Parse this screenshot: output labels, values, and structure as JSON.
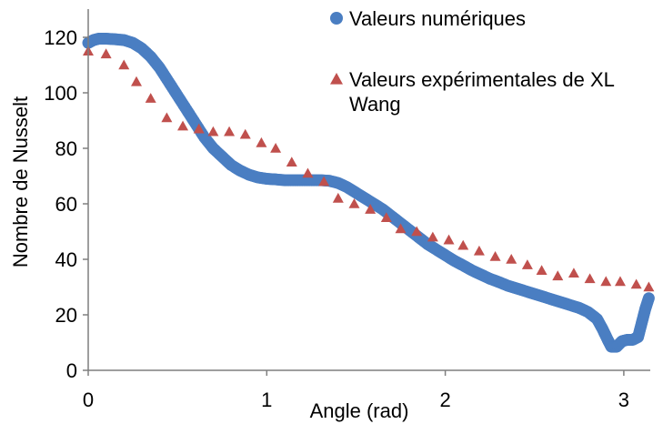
{
  "chart_data": {
    "type": "scatter",
    "xlabel": "Angle (rad)",
    "ylabel": "Nombre de Nusselt",
    "xlim": [
      0,
      3.2
    ],
    "ylim": [
      0,
      120
    ],
    "xticks": [
      0,
      1,
      2,
      3
    ],
    "yticks": [
      0,
      20,
      40,
      60,
      80,
      100,
      120
    ],
    "grid": false,
    "legend": "top-right",
    "series": [
      {
        "name": "Valeurs numériques",
        "marker": "circle",
        "color": "#4a7ec2",
        "points": [
          [
            0.0,
            118
          ],
          [
            0.03,
            119
          ],
          [
            0.06,
            119.5
          ],
          [
            0.1,
            119.5
          ],
          [
            0.15,
            119.3
          ],
          [
            0.2,
            119
          ],
          [
            0.25,
            118
          ],
          [
            0.3,
            116
          ],
          [
            0.35,
            113
          ],
          [
            0.4,
            109
          ],
          [
            0.45,
            104
          ],
          [
            0.5,
            99
          ],
          [
            0.55,
            94
          ],
          [
            0.6,
            89
          ],
          [
            0.65,
            84
          ],
          [
            0.7,
            80
          ],
          [
            0.75,
            77
          ],
          [
            0.8,
            74
          ],
          [
            0.85,
            72
          ],
          [
            0.9,
            70.5
          ],
          [
            0.95,
            69.5
          ],
          [
            1.0,
            69
          ],
          [
            1.05,
            68.8
          ],
          [
            1.1,
            68.5
          ],
          [
            1.15,
            68.5
          ],
          [
            1.2,
            68.5
          ],
          [
            1.25,
            68.5
          ],
          [
            1.3,
            68.5
          ],
          [
            1.35,
            68.3
          ],
          [
            1.4,
            67.5
          ],
          [
            1.45,
            66
          ],
          [
            1.5,
            64
          ],
          [
            1.55,
            62
          ],
          [
            1.6,
            60
          ],
          [
            1.65,
            58
          ],
          [
            1.7,
            55.5
          ],
          [
            1.75,
            53
          ],
          [
            1.8,
            50.5
          ],
          [
            1.85,
            48
          ],
          [
            1.9,
            45.5
          ],
          [
            1.95,
            43.5
          ],
          [
            2.0,
            41.5
          ],
          [
            2.05,
            39.5
          ],
          [
            2.1,
            37.8
          ],
          [
            2.15,
            36
          ],
          [
            2.2,
            34.5
          ],
          [
            2.25,
            33
          ],
          [
            2.3,
            31.8
          ],
          [
            2.35,
            30.5
          ],
          [
            2.4,
            29.5
          ],
          [
            2.45,
            28.5
          ],
          [
            2.5,
            27.5
          ],
          [
            2.55,
            26.5
          ],
          [
            2.6,
            25.5
          ],
          [
            2.65,
            24.5
          ],
          [
            2.7,
            23.5
          ],
          [
            2.75,
            22.5
          ],
          [
            2.8,
            21
          ],
          [
            2.85,
            18.5
          ],
          [
            2.88,
            15
          ],
          [
            2.91,
            11
          ],
          [
            2.93,
            8.5
          ],
          [
            2.96,
            8.5
          ],
          [
            2.99,
            10.5
          ],
          [
            3.02,
            11
          ],
          [
            3.05,
            11
          ],
          [
            3.08,
            12
          ],
          [
            3.1,
            17
          ],
          [
            3.12,
            22
          ],
          [
            3.14,
            26
          ]
        ]
      },
      {
        "name": "Valeurs expérimentales de XL Wang",
        "marker": "triangle",
        "color": "#c0504d",
        "points": [
          [
            0.0,
            115
          ],
          [
            0.1,
            114
          ],
          [
            0.2,
            110
          ],
          [
            0.27,
            104
          ],
          [
            0.35,
            98
          ],
          [
            0.44,
            91
          ],
          [
            0.53,
            88
          ],
          [
            0.62,
            87
          ],
          [
            0.7,
            86
          ],
          [
            0.79,
            86
          ],
          [
            0.88,
            85
          ],
          [
            0.97,
            82
          ],
          [
            1.05,
            80
          ],
          [
            1.14,
            75
          ],
          [
            1.23,
            71
          ],
          [
            1.32,
            68
          ],
          [
            1.4,
            62
          ],
          [
            1.49,
            60
          ],
          [
            1.58,
            58
          ],
          [
            1.67,
            55
          ],
          [
            1.75,
            51
          ],
          [
            1.84,
            50
          ],
          [
            1.93,
            48
          ],
          [
            2.02,
            47
          ],
          [
            2.1,
            45
          ],
          [
            2.19,
            43
          ],
          [
            2.28,
            41
          ],
          [
            2.37,
            40
          ],
          [
            2.46,
            38
          ],
          [
            2.54,
            36
          ],
          [
            2.63,
            34
          ],
          [
            2.72,
            35
          ],
          [
            2.81,
            33
          ],
          [
            2.9,
            32
          ],
          [
            2.98,
            32
          ],
          [
            3.07,
            31
          ],
          [
            3.14,
            30
          ]
        ]
      }
    ]
  }
}
